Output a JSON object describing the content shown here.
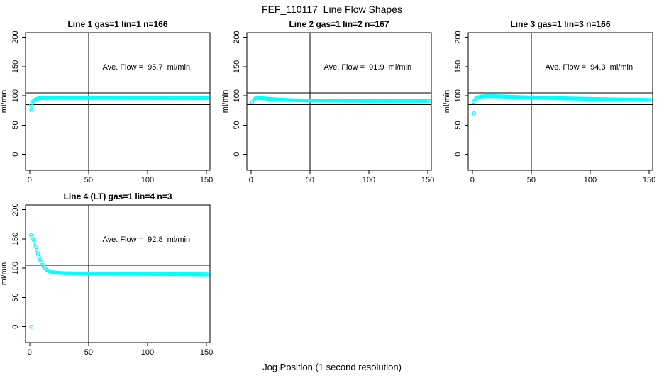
{
  "figure": {
    "title": "FEF_110117  Line Flow Shapes",
    "xlabel": "Jog Position (1 second resolution)"
  },
  "chart_data": {
    "type": "scatter",
    "title": "FEF_110117  Line Flow Shapes",
    "xlabel": "Jog Position (1 second resolution)",
    "ylabel": "ml/min",
    "x_ticks": [
      0,
      50,
      100,
      150
    ],
    "y_ticks": [
      0,
      50,
      100,
      150,
      200
    ],
    "xlim": [
      -3.5,
      153
    ],
    "ylim": [
      -27,
      208
    ],
    "grid": false,
    "legend": "none",
    "point_style": "open-circle",
    "point_color": "#00ffff",
    "axis_color": "#000000",
    "background_color": "#ffffff",
    "ref_vline_x": 50,
    "ref_hlines_y": [
      105,
      85
    ],
    "annotation_position": {
      "x": 99,
      "y": 150
    },
    "subplots": [
      {
        "title": "Line 1 gas=1 lin=1 n=166",
        "annotation": "Ave. Flow =  95.7  ml/min",
        "ave_flow_ml_min": 95.7,
        "gas": 1,
        "lin": 1,
        "n": 166,
        "x_start": 1,
        "x_end": 151,
        "keypoints": [
          [
            1,
            84
          ],
          [
            2,
            88
          ],
          [
            3,
            91
          ],
          [
            4,
            93
          ],
          [
            6,
            95
          ],
          [
            8,
            95.8
          ],
          [
            12,
            96.3
          ],
          [
            20,
            96.5
          ],
          [
            40,
            96.5
          ],
          [
            80,
            96.4
          ],
          [
            120,
            96.2
          ],
          [
            151,
            96
          ]
        ],
        "outliers": [
          [
            1.5,
            77
          ]
        ]
      },
      {
        "title": "Line 2 gas=1 lin=2 n=167",
        "annotation": "Ave. Flow =  91.9  ml/min",
        "ave_flow_ml_min": 91.9,
        "gas": 1,
        "lin": 2,
        "n": 167,
        "x_start": 1,
        "x_end": 151,
        "keypoints": [
          [
            1,
            89
          ],
          [
            2,
            93
          ],
          [
            4,
            96
          ],
          [
            6,
            96.5
          ],
          [
            10,
            95.8
          ],
          [
            20,
            94.2
          ],
          [
            35,
            92.6
          ],
          [
            60,
            91.8
          ],
          [
            100,
            91.5
          ],
          [
            151,
            91.5
          ]
        ],
        "outliers": []
      },
      {
        "title": "Line 3 gas=1 lin=3 n=166",
        "annotation": "Ave. Flow =  94.3  ml/min",
        "ave_flow_ml_min": 94.3,
        "gas": 1,
        "lin": 3,
        "n": 166,
        "x_start": 1,
        "x_end": 151,
        "keypoints": [
          [
            1,
            90
          ],
          [
            2,
            93
          ],
          [
            4,
            97
          ],
          [
            8,
            99
          ],
          [
            15,
            99.5
          ],
          [
            25,
            99
          ],
          [
            40,
            97.8
          ],
          [
            60,
            96.5
          ],
          [
            90,
            95.2
          ],
          [
            120,
            94
          ],
          [
            151,
            93
          ]
        ],
        "outliers": [
          [
            1.5,
            70
          ]
        ]
      },
      {
        "title": "Line 4 (LT) gas=1 lin=4 n=3",
        "annotation": "Ave. Flow =  92.8  ml/min",
        "ave_flow_ml_min": 92.8,
        "gas": 1,
        "lin": 4,
        "n": 3,
        "x_start": 1,
        "x_end": 151,
        "keypoints": [
          [
            1,
            157
          ],
          [
            2,
            154
          ],
          [
            3,
            149
          ],
          [
            4,
            143
          ],
          [
            5,
            137
          ],
          [
            6,
            131
          ],
          [
            7,
            125
          ],
          [
            8,
            119
          ],
          [
            9,
            114
          ],
          [
            10,
            110
          ],
          [
            11,
            106
          ],
          [
            12,
            103
          ],
          [
            13,
            100
          ],
          [
            14,
            98
          ],
          [
            15,
            96.5
          ],
          [
            17,
            94.5
          ],
          [
            20,
            93
          ],
          [
            25,
            92
          ],
          [
            30,
            91.5
          ],
          [
            50,
            91
          ],
          [
            80,
            90.5
          ],
          [
            120,
            90
          ],
          [
            151,
            89.5
          ]
        ],
        "outliers": [
          [
            1.5,
            0
          ]
        ]
      }
    ]
  }
}
